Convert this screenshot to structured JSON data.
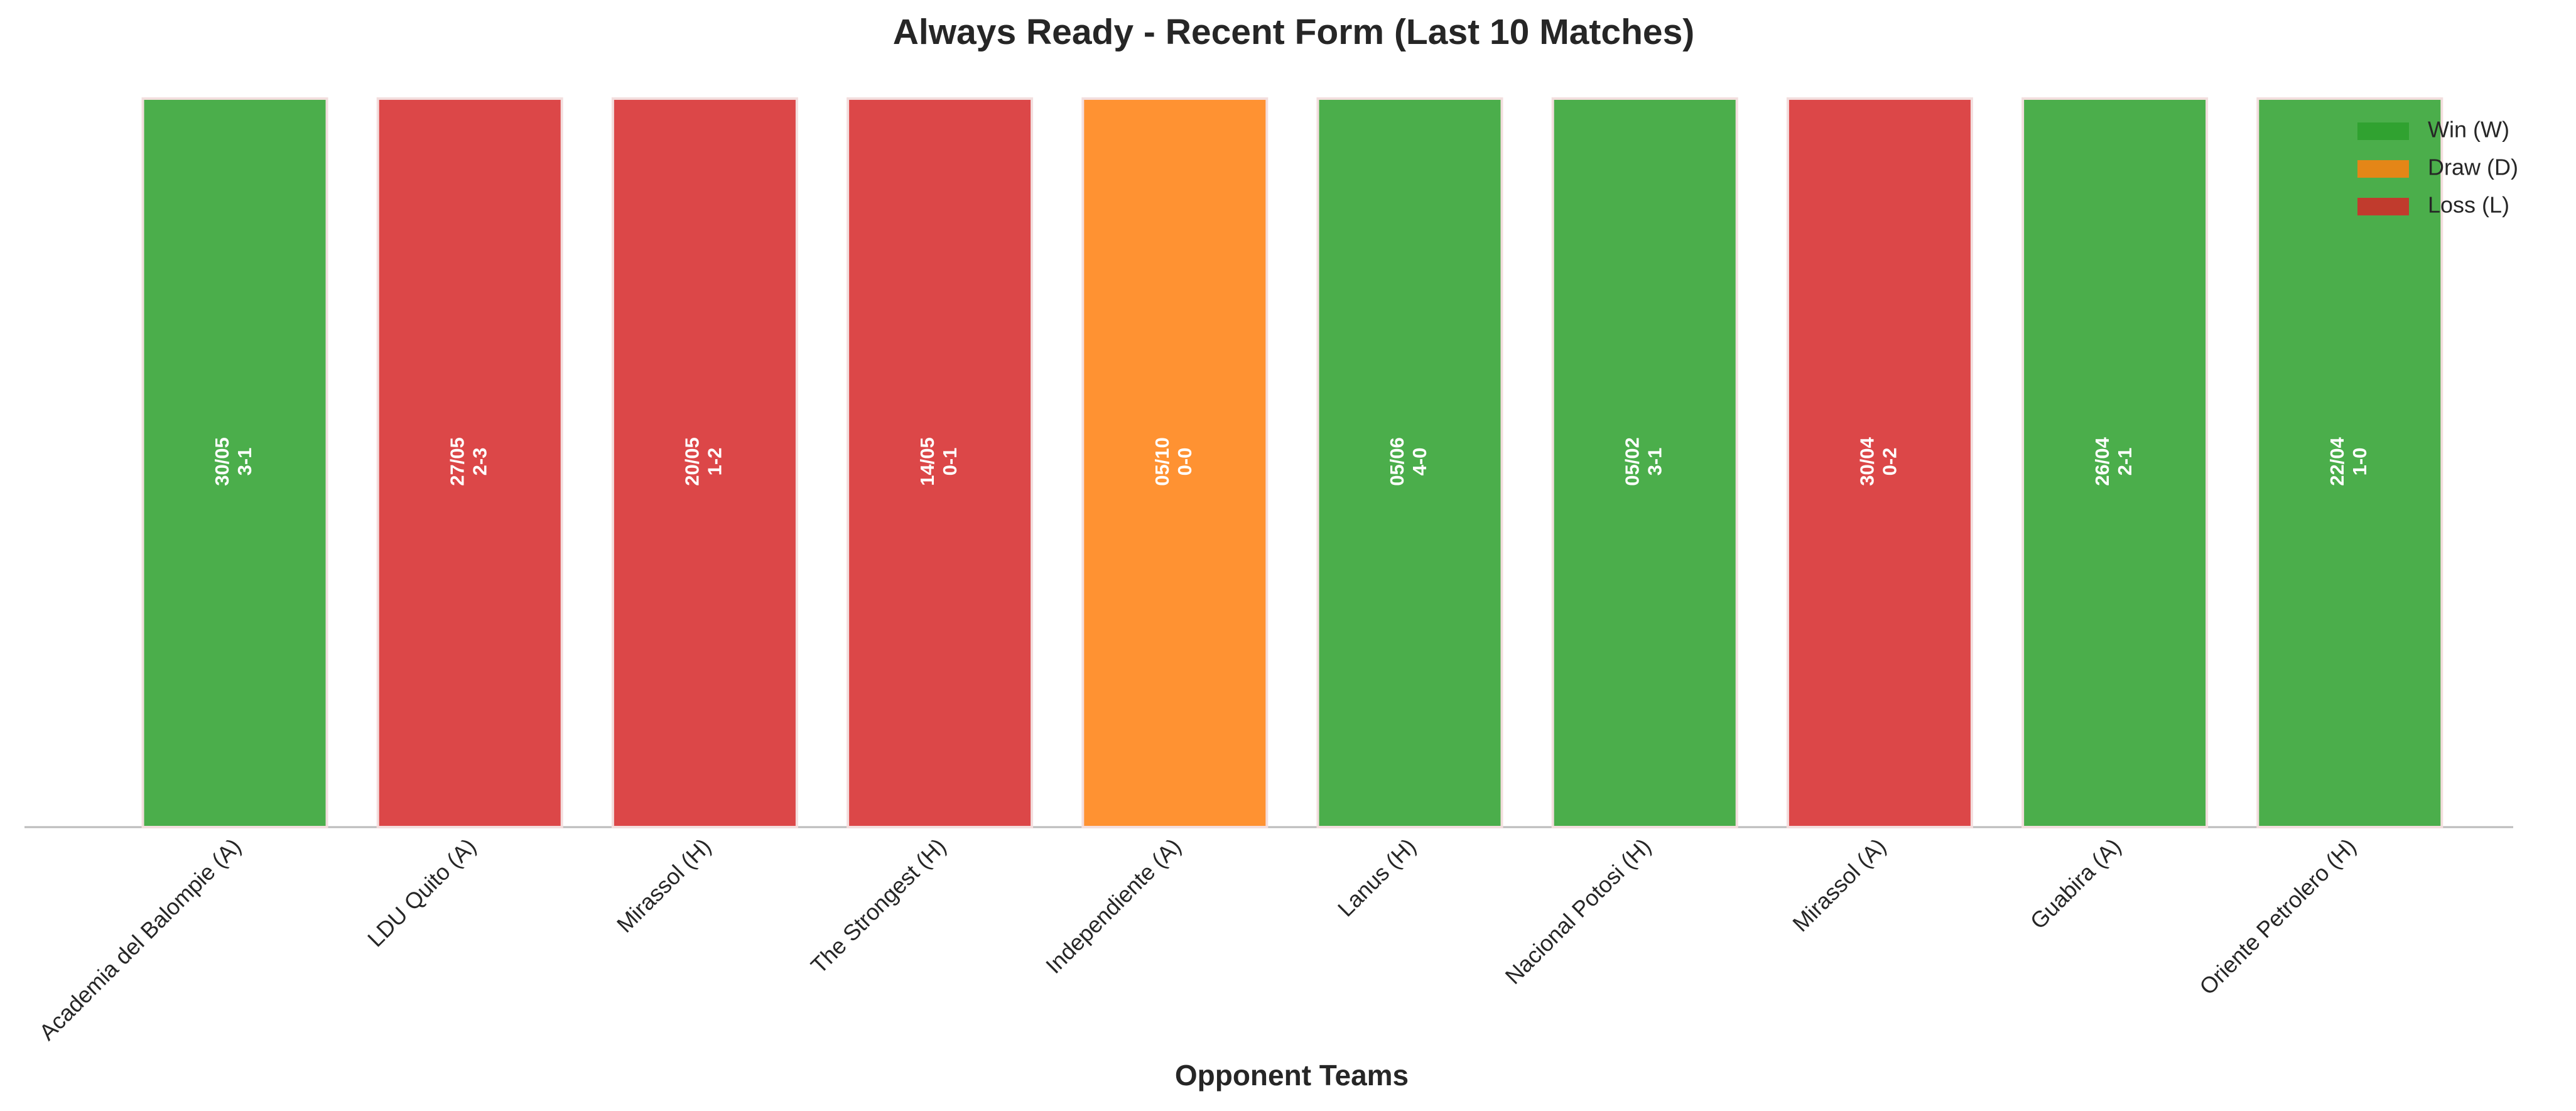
{
  "chart_data": {
    "type": "bar",
    "title": "Always Ready - Recent Form (Last 10 Matches)",
    "x_label": "Opponent Teams",
    "categories": [
      "Academia del Balompie (A)",
      "LDU Quito (A)",
      "Mirassol (H)",
      "The Strongest (H)",
      "Independiente (A)",
      "Lanus (H)",
      "Nacional Potosi (H)",
      "Mirassol (A)",
      "Guabira (A)",
      "Oriente Petrolero (H)"
    ],
    "values": [
      1,
      1,
      1,
      1,
      1,
      1,
      1,
      1,
      1,
      1
    ],
    "dates": [
      "30/05",
      "27/05",
      "20/05",
      "14/05",
      "05/10",
      "05/06",
      "05/02",
      "30/04",
      "26/04",
      "22/04"
    ],
    "scores": [
      "3-1",
      "2-3",
      "1-2",
      "0-1",
      "0-0",
      "4-0",
      "3-1",
      "0-2",
      "2-1",
      "1-0"
    ],
    "colors": [
      "#2ca02c",
      "#d62728",
      "#d62728",
      "#d62728",
      "#ff7f0e",
      "#2ca02c",
      "#2ca02c",
      "#d62728",
      "#2ca02c",
      "#2ca02c"
    ],
    "ylim": [
      0,
      1
    ],
    "legend": [
      {
        "name": "Win (W)",
        "color": "#2ca02c"
      },
      {
        "name": "Draw (D)",
        "color": "#ff7f0e"
      },
      {
        "name": "Loss (L)",
        "color": "#d62728"
      }
    ],
    "legend_position": "upper right"
  }
}
